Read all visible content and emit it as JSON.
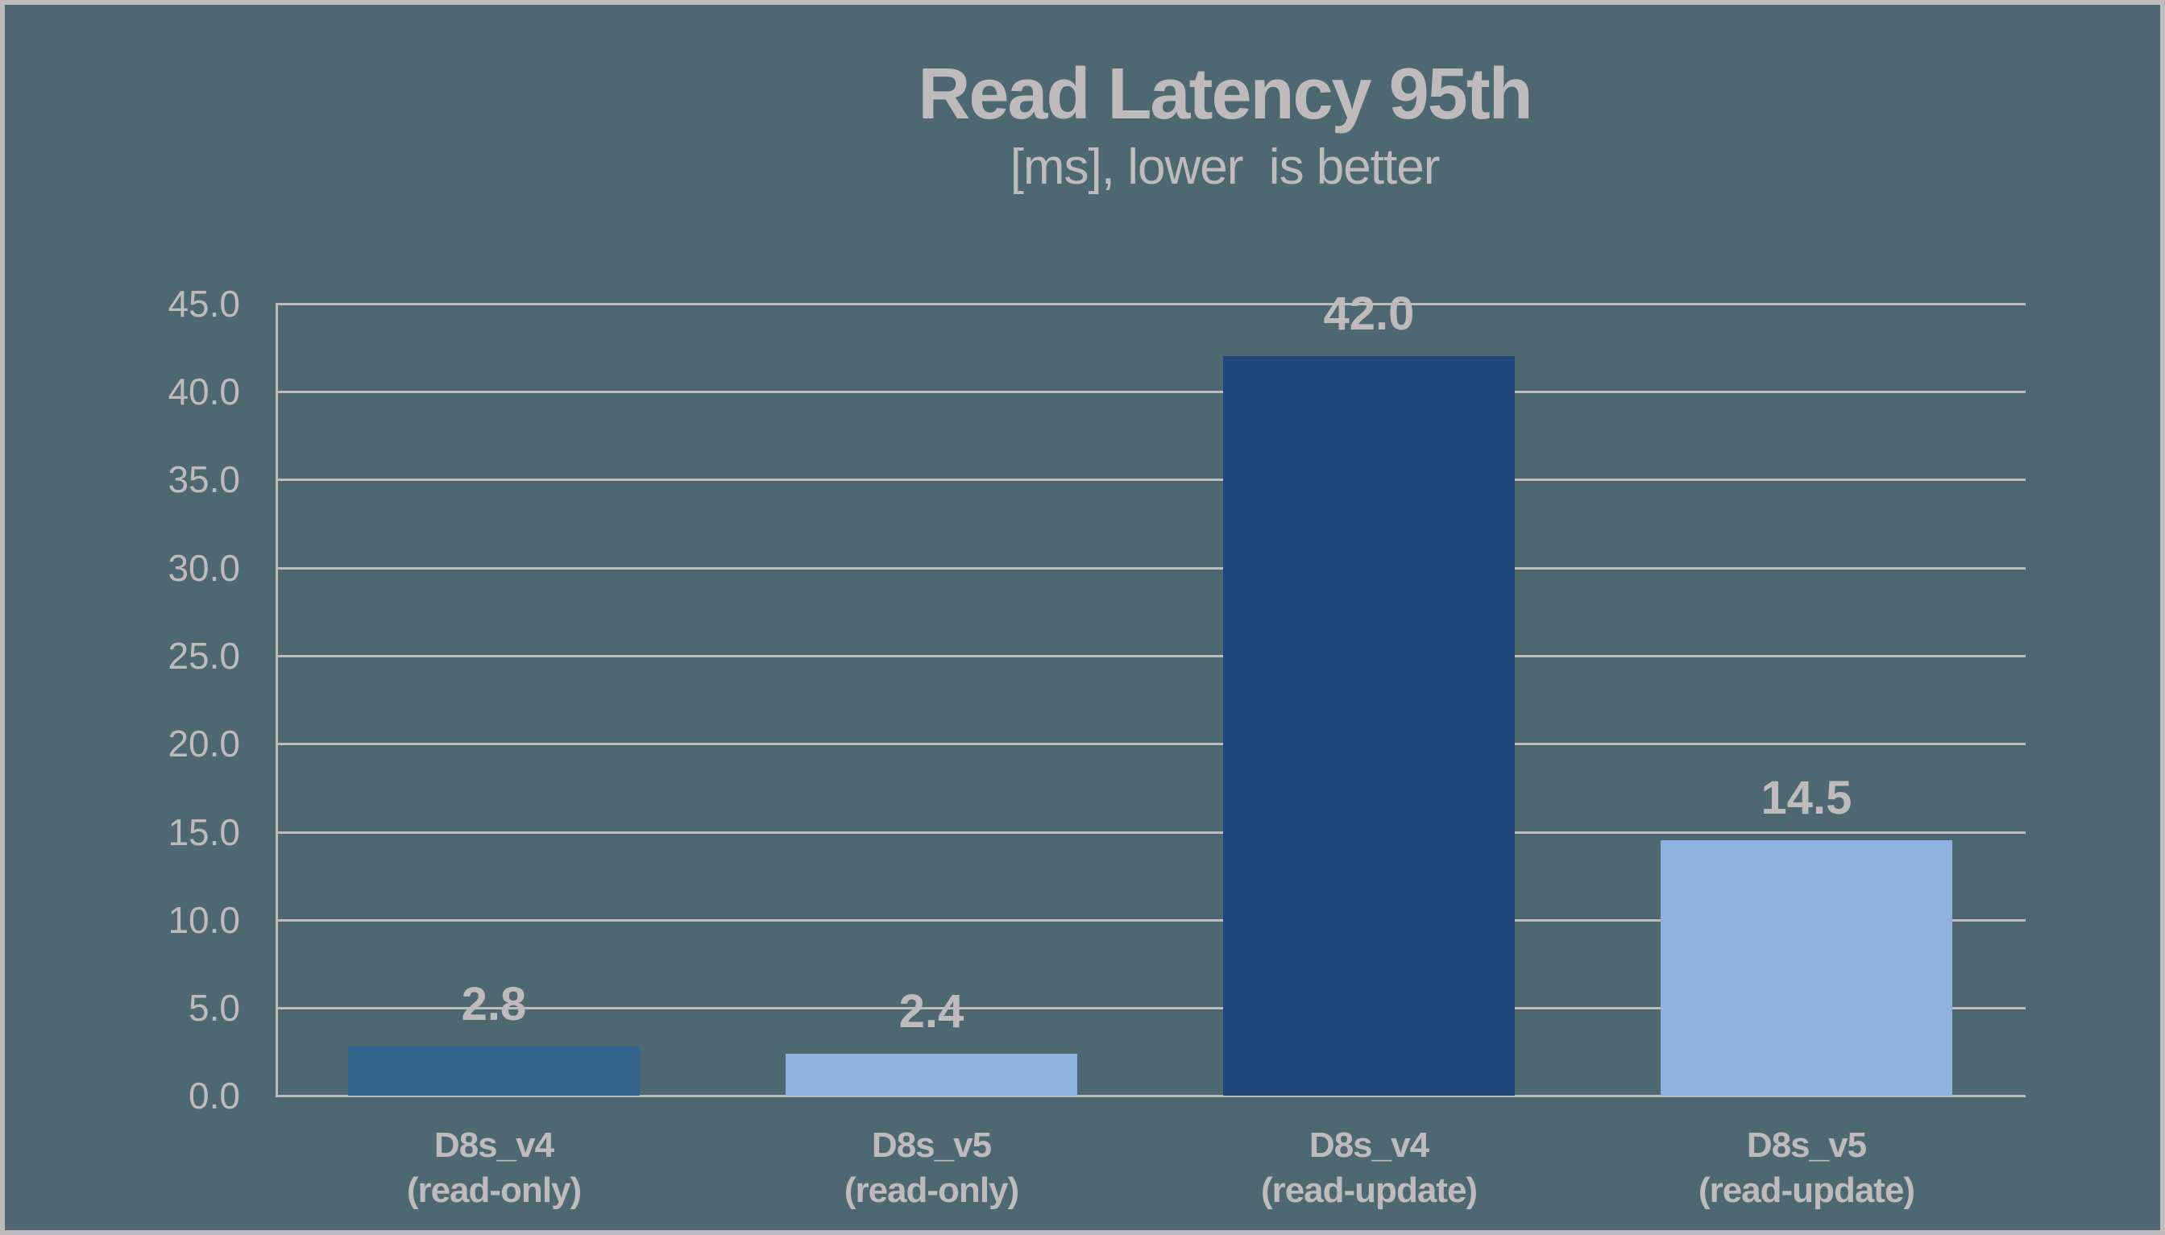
{
  "chart_data": {
    "type": "bar",
    "title": "Read Latency 95th",
    "subtitle": "[ms], lower  is better",
    "xlabel": "",
    "ylabel": "",
    "ylim": [
      0,
      45
    ],
    "yticks": [
      "0.0",
      "5.0",
      "10.0",
      "15.0",
      "20.0",
      "25.0",
      "30.0",
      "35.0",
      "40.0",
      "45.0"
    ],
    "grid": true,
    "legend": "none",
    "categories": [
      {
        "line1": "D8s_v4",
        "line2": "(read-only)"
      },
      {
        "line1": "D8s_v5",
        "line2": "(read-only)"
      },
      {
        "line1": "D8s_v4",
        "line2": "(read-update)"
      },
      {
        "line1": "D8s_v5",
        "line2": "(read-update)"
      }
    ],
    "values": [
      2.8,
      2.4,
      42.0,
      14.5
    ],
    "value_labels": [
      "2.8",
      "2.4",
      "42.0",
      "14.5"
    ],
    "bar_colors": [
      "#33658f",
      "#8db2e0",
      "#1f4779",
      "#8db2e0"
    ]
  },
  "colors": {
    "background": "#4d6870",
    "frame": "#bfbbbd",
    "text": "#bfbbbd",
    "grid": "#bfbbbd"
  }
}
